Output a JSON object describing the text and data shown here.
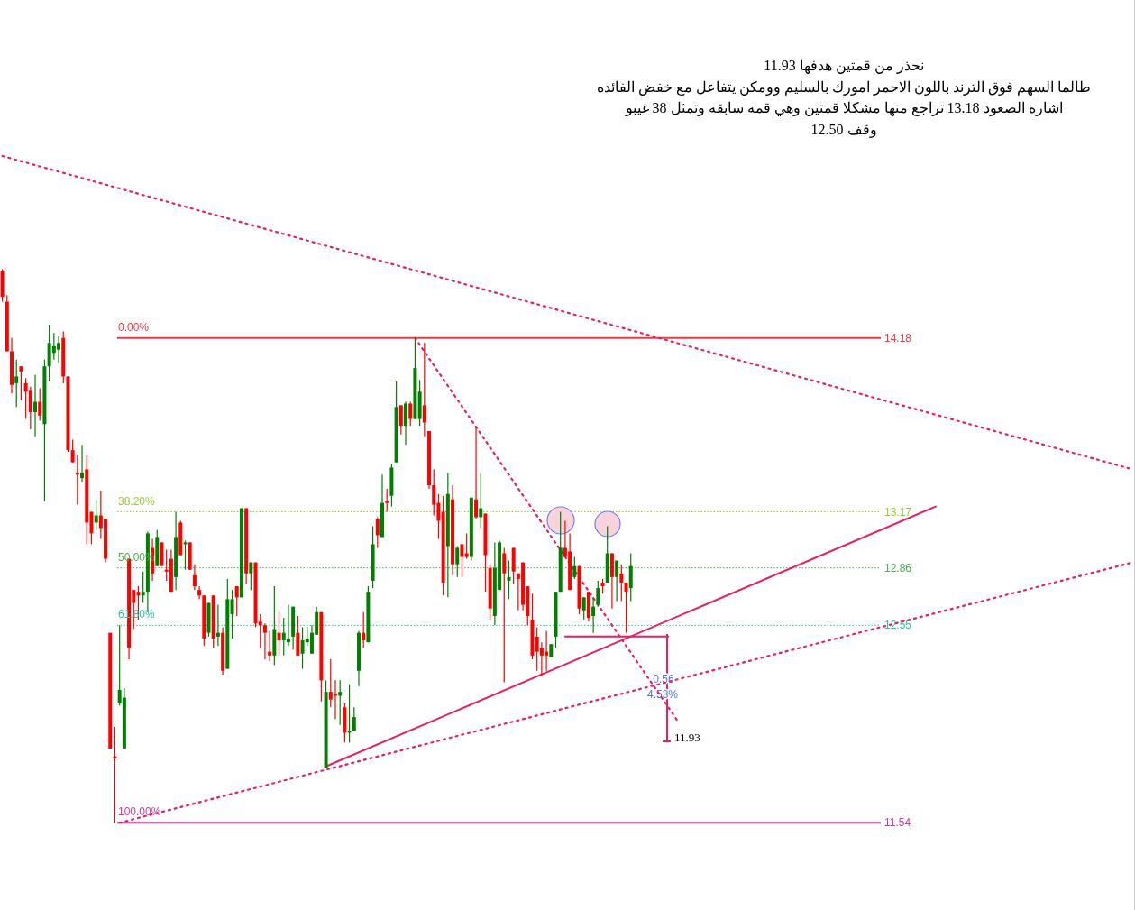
{
  "chart_data": {
    "type": "candlestick",
    "log": true,
    "ylim": [
      11.12,
      16.37
    ],
    "yticks": [
      14.18,
      13.17,
      12.86,
      12.55,
      11.54
    ],
    "tick_labels": "y",
    "categories": [
      null,
      null,
      null,
      null,
      null,
      null,
      null,
      null,
      null,
      null,
      null,
      null,
      null,
      null,
      null,
      null,
      null,
      null,
      null,
      null,
      null,
      null,
      null,
      null,
      null,
      null,
      null,
      null,
      null,
      null,
      null,
      null,
      null,
      null,
      null,
      null,
      null,
      null,
      null,
      null,
      null,
      null,
      null,
      null,
      null,
      null,
      null,
      null,
      null,
      null,
      null,
      null,
      null,
      null,
      null,
      null,
      null,
      null,
      null,
      null,
      null,
      null,
      null,
      null,
      null,
      null,
      null,
      null,
      null,
      null,
      null,
      null,
      null,
      null,
      null,
      null,
      null,
      null,
      null,
      null,
      null,
      null,
      null,
      null,
      null,
      null,
      null,
      null,
      null,
      null,
      null,
      null,
      null,
      null,
      null,
      null,
      null,
      null,
      null,
      null,
      null,
      null,
      null,
      null,
      null,
      null,
      null,
      null,
      null,
      null,
      null,
      null,
      null,
      null,
      null,
      null,
      null,
      null,
      null,
      null,
      null,
      null,
      null,
      null,
      null,
      null,
      null,
      null,
      null,
      null,
      null,
      null,
      null,
      null,
      null,
      null,
      null,
      null,
      null,
      null,
      null,
      null,
      null,
      null,
      null,
      null,
      null,
      null,
      null,
      null,
      null,
      null,
      null,
      null,
      null,
      null,
      null,
      null,
      null,
      null,
      null,
      null,
      null,
      null,
      null,
      null,
      null,
      null,
      null,
      null,
      null,
      null,
      null,
      null,
      null,
      null,
      null,
      null,
      null,
      null,
      null,
      null,
      null,
      null,
      null,
      null,
      null,
      null,
      null,
      null,
      null,
      null,
      null,
      null,
      null,
      null,
      null,
      null,
      null,
      null,
      null,
      null,
      null,
      null,
      null,
      null,
      null,
      null,
      null,
      null,
      null,
      null,
      null,
      null,
      null,
      null,
      null,
      null,
      null,
      null,
      null,
      null,
      null,
      null,
      null,
      null,
      null,
      null,
      null,
      null,
      null,
      null,
      null,
      null,
      null,
      null,
      null,
      null,
      null,
      null,
      null,
      null
    ],
    "ohlc": [
      [
        14.59,
        14.6,
        14.4,
        14.43
      ],
      [
        14.4,
        14.44,
        14.1,
        14.1
      ],
      [
        14.1,
        14.18,
        13.85,
        13.9
      ],
      [
        13.91,
        14.05,
        13.77,
        13.95
      ],
      [
        14.01,
        14.01,
        13.81,
        13.98
      ],
      [
        13.91,
        13.94,
        13.7,
        13.86
      ],
      [
        13.87,
        13.89,
        13.64,
        13.74
      ],
      [
        13.74,
        13.96,
        13.6,
        13.8
      ],
      [
        13.8,
        13.88,
        13.69,
        13.72
      ],
      [
        13.67,
        14.05,
        13.23,
        14.01
      ],
      [
        14.01,
        14.26,
        13.92,
        14.15
      ],
      [
        14.09,
        14.21,
        14.05,
        14.13
      ],
      [
        14.11,
        14.19,
        14.03,
        14.15
      ],
      [
        14.18,
        14.22,
        13.91,
        13.95
      ],
      [
        13.95,
        13.95,
        13.51,
        13.52
      ],
      [
        13.52,
        13.58,
        13.45,
        13.45
      ],
      [
        13.39,
        13.49,
        13.21,
        13.38
      ],
      [
        13.36,
        13.55,
        13.34,
        13.39
      ],
      [
        13.41,
        13.49,
        12.99,
        13.11
      ],
      [
        13.17,
        13.17,
        12.99,
        13.05
      ],
      [
        13.11,
        13.24,
        13.07,
        13.15
      ],
      [
        13.15,
        13.29,
        13.02,
        13.08
      ],
      [
        13.13,
        13.13,
        12.89,
        12.91
      ],
      [
        12.51,
        12.51,
        11.91,
        11.91
      ],
      [
        11.87,
        12.02,
        11.54,
        11.86
      ],
      [
        12.14,
        12.55,
        12.13,
        12.21
      ],
      [
        11.91,
        12.22,
        11.91,
        12.17
      ],
      [
        12.91,
        12.91,
        12.37,
        12.43
      ],
      [
        12.74,
        12.74,
        12.53,
        12.67
      ],
      [
        12.73,
        12.76,
        12.58,
        12.71
      ],
      [
        12.71,
        12.84,
        12.67,
        12.73
      ],
      [
        12.73,
        13.06,
        12.62,
        13.05
      ],
      [
        12.97,
        13.02,
        12.79,
        12.83
      ],
      [
        12.87,
        13.07,
        12.87,
        13.03
      ],
      [
        13.0,
        13.0,
        12.87,
        12.87
      ],
      [
        12.85,
        12.96,
        12.79,
        12.84
      ],
      [
        12.91,
        12.96,
        12.73,
        12.73
      ],
      [
        12.81,
        13.17,
        12.74,
        13.03
      ],
      [
        13.11,
        13.12,
        12.93,
        12.93
      ],
      [
        12.99,
        13.01,
        12.85,
        13.0
      ],
      [
        13.0,
        13.0,
        12.85,
        12.85
      ],
      [
        12.82,
        12.88,
        12.74,
        12.76
      ],
      [
        12.74,
        12.76,
        12.69,
        12.71
      ],
      [
        12.71,
        12.71,
        12.44,
        12.48
      ],
      [
        12.51,
        12.67,
        12.49,
        12.67
      ],
      [
        12.71,
        12.71,
        12.43,
        12.48
      ],
      [
        12.49,
        12.66,
        12.44,
        12.51
      ],
      [
        12.51,
        12.54,
        12.29,
        12.31
      ],
      [
        12.32,
        12.8,
        12.32,
        12.69
      ],
      [
        12.61,
        12.74,
        12.48,
        12.69
      ],
      [
        12.76,
        12.76,
        12.6,
        12.7
      ],
      [
        12.7,
        13.19,
        12.7,
        13.19
      ],
      [
        13.19,
        13.19,
        12.77,
        12.83
      ],
      [
        12.83,
        12.89,
        12.74,
        12.89
      ],
      [
        12.89,
        12.89,
        12.54,
        12.56
      ],
      [
        12.57,
        12.61,
        12.43,
        12.55
      ],
      [
        12.55,
        12.56,
        12.37,
        12.51
      ],
      [
        12.41,
        12.52,
        12.36,
        12.39
      ],
      [
        12.39,
        12.76,
        12.34,
        12.53
      ],
      [
        12.51,
        12.62,
        12.39,
        12.47
      ],
      [
        12.47,
        12.59,
        12.39,
        12.51
      ],
      [
        12.46,
        12.66,
        12.44,
        12.48
      ],
      [
        12.49,
        12.65,
        12.42,
        12.65
      ],
      [
        12.51,
        12.6,
        12.39,
        12.39
      ],
      [
        12.4,
        12.54,
        12.32,
        12.47
      ],
      [
        12.46,
        12.54,
        12.44,
        12.48
      ],
      [
        12.4,
        12.55,
        12.4,
        12.51
      ],
      [
        12.5,
        12.65,
        12.5,
        12.62
      ],
      [
        12.62,
        12.62,
        12.15,
        12.26
      ],
      [
        11.81,
        12.26,
        11.81,
        12.2
      ],
      [
        12.2,
        12.37,
        12.12,
        12.16
      ],
      [
        12.19,
        12.26,
        12.06,
        12.18
      ],
      [
        12.18,
        12.26,
        12.03,
        12.2
      ],
      [
        12.12,
        12.14,
        11.94,
        11.99
      ],
      [
        11.99,
        12.24,
        11.94,
        12.0
      ],
      [
        12.0,
        12.12,
        12.0,
        12.07
      ],
      [
        12.31,
        12.52,
        12.23,
        12.51
      ],
      [
        12.51,
        12.62,
        12.43,
        12.47
      ],
      [
        12.46,
        12.76,
        12.46,
        12.73
      ],
      [
        12.79,
        13.09,
        12.75,
        12.99
      ],
      [
        13.13,
        13.14,
        12.97,
        13.04
      ],
      [
        13.03,
        13.38,
        13.03,
        13.22
      ],
      [
        13.23,
        13.3,
        13.17,
        13.22
      ],
      [
        13.26,
        13.44,
        13.2,
        13.42
      ],
      [
        13.45,
        13.92,
        13.45,
        13.77
      ],
      [
        13.78,
        13.78,
        13.61,
        13.66
      ],
      [
        13.66,
        13.8,
        13.55,
        13.79
      ],
      [
        13.79,
        13.8,
        13.66,
        13.7
      ],
      [
        13.7,
        14.18,
        13.7,
        14.0
      ],
      [
        13.7,
        13.93,
        13.66,
        13.86
      ],
      [
        13.78,
        14.15,
        13.6,
        13.68
      ],
      [
        13.63,
        13.63,
        13.3,
        13.32
      ],
      [
        13.32,
        13.41,
        13.15,
        13.21
      ],
      [
        13.22,
        13.27,
        13.02,
        13.12
      ],
      [
        13.17,
        13.26,
        12.71,
        12.78
      ],
      [
        12.98,
        13.39,
        12.7,
        13.27
      ],
      [
        13.24,
        13.32,
        12.82,
        12.88
      ],
      [
        12.88,
        12.98,
        12.81,
        12.97
      ],
      [
        12.99,
        12.99,
        12.81,
        12.92
      ],
      [
        12.94,
        13.05,
        12.91,
        12.92
      ],
      [
        12.92,
        13.25,
        12.9,
        13.25
      ],
      [
        13.24,
        13.65,
        13.13,
        13.14
      ],
      [
        13.14,
        13.39,
        13.08,
        13.19
      ],
      [
        13.16,
        13.16,
        12.73,
        12.93
      ],
      [
        12.86,
        12.88,
        12.58,
        12.64
      ],
      [
        12.6,
        13.0,
        12.55,
        12.86
      ],
      [
        12.74,
        13.01,
        12.74,
        13.0
      ],
      [
        12.94,
        12.97,
        12.25,
        12.83
      ],
      [
        12.79,
        12.9,
        12.69,
        12.81
      ],
      [
        12.97,
        12.97,
        12.77,
        12.84
      ],
      [
        12.83,
        12.83,
        12.63,
        12.8
      ],
      [
        12.89,
        12.89,
        12.63,
        12.66
      ],
      [
        12.76,
        12.76,
        12.55,
        12.6
      ],
      [
        12.58,
        12.72,
        12.37,
        12.39
      ],
      [
        12.49,
        12.54,
        12.31,
        12.41
      ],
      [
        12.43,
        12.46,
        12.28,
        12.39
      ],
      [
        12.41,
        12.52,
        12.31,
        12.39
      ],
      [
        12.38,
        12.45,
        12.38,
        12.45
      ],
      [
        12.49,
        12.73,
        12.43,
        12.73
      ],
      [
        12.73,
        13.17,
        12.73,
        12.97
      ],
      [
        12.97,
        13.12,
        12.92,
        12.92
      ],
      [
        12.95,
        13.05,
        12.74,
        12.74
      ],
      [
        12.81,
        12.92,
        12.8,
        12.87
      ],
      [
        12.87,
        12.87,
        12.61,
        12.64
      ],
      [
        12.63,
        12.7,
        12.58,
        12.7
      ],
      [
        12.73,
        12.73,
        12.57,
        12.59
      ],
      [
        12.6,
        12.7,
        12.51,
        12.65
      ],
      [
        12.66,
        12.79,
        12.65,
        12.75
      ],
      [
        12.78,
        12.8,
        12.72,
        12.76
      ],
      [
        12.78,
        13.09,
        12.78,
        12.94
      ],
      [
        12.94,
        12.94,
        12.64,
        12.81
      ],
      [
        12.81,
        12.9,
        12.68,
        12.9
      ],
      [
        12.83,
        12.88,
        12.68,
        12.78
      ],
      [
        12.78,
        12.78,
        12.51,
        12.73
      ],
      [
        12.75,
        12.94,
        12.68,
        12.87
      ],
      null,
      null,
      null,
      null,
      null,
      null,
      null,
      null,
      null,
      null,
      null,
      null,
      null,
      null,
      null,
      null,
      null,
      null,
      null,
      null,
      null,
      null,
      null,
      null,
      null,
      null,
      null,
      null,
      null,
      null,
      null,
      null,
      null,
      null,
      null,
      null,
      null,
      null,
      null,
      null,
      null,
      null,
      null,
      null,
      null,
      null,
      null,
      null,
      null,
      null,
      null,
      null,
      null,
      null,
      null,
      null,
      null,
      null,
      null,
      null,
      null,
      null,
      null,
      null,
      null,
      null,
      null,
      null,
      null,
      null,
      null,
      null,
      null,
      null,
      null,
      null,
      null,
      null,
      null,
      null,
      null,
      null,
      null,
      null,
      null,
      null,
      null,
      null,
      null,
      null,
      null,
      null,
      null,
      null,
      null,
      null,
      null,
      null,
      null,
      null,
      null,
      null,
      null,
      null,
      null,
      null,
      null
    ],
    "series": [
      {
        "type": "line",
        "values": [
          15.32,
          null,
          null,
          null,
          null,
          null,
          null,
          null,
          null,
          null,
          null,
          null,
          null,
          null,
          null,
          null,
          null,
          null,
          null,
          null,
          null,
          null,
          null,
          null,
          null,
          null,
          null,
          null,
          null,
          null,
          null,
          null,
          null,
          null,
          null,
          null,
          null,
          null,
          null,
          null,
          null,
          null,
          null,
          null,
          null,
          null,
          null,
          null,
          null,
          null,
          null,
          null,
          null,
          null,
          null,
          null,
          null,
          null,
          null,
          null,
          null,
          null,
          null,
          null,
          null,
          null,
          null,
          null,
          null,
          null,
          null,
          null,
          null,
          null,
          null,
          null,
          null,
          null,
          null,
          null,
          null,
          null,
          null,
          null,
          null,
          null,
          null,
          null,
          null,
          null,
          null,
          null,
          null,
          null,
          null,
          null,
          null,
          null,
          null,
          null,
          null,
          null,
          null,
          null,
          null,
          null,
          null,
          null,
          null,
          null,
          null,
          null,
          null,
          null,
          null,
          null,
          null,
          null,
          null,
          null,
          null,
          null,
          null,
          null,
          null,
          null,
          null,
          null,
          null,
          null,
          null,
          null,
          null,
          null,
          null,
          null,
          null,
          null,
          null,
          null,
          null,
          null,
          null,
          null,
          null,
          null,
          null,
          null,
          null,
          null,
          null,
          null,
          null,
          null,
          null,
          null,
          null,
          null,
          null,
          null,
          null,
          null,
          null,
          null,
          null,
          null,
          null,
          null,
          null,
          null,
          null,
          null,
          null,
          null,
          null,
          null,
          null,
          null,
          null,
          null,
          null,
          null,
          null,
          null,
          null,
          null,
          null,
          null,
          null,
          null,
          null,
          null,
          null,
          null,
          null,
          null,
          null,
          null,
          null,
          null,
          null,
          null,
          null,
          null,
          null,
          null,
          null,
          null,
          null,
          null,
          null,
          null,
          null,
          null,
          null,
          null,
          null,
          null,
          null,
          null,
          null,
          null,
          null,
          null,
          null,
          null,
          null,
          null,
          null,
          null,
          null,
          null,
          null,
          null,
          null,
          null,
          null,
          null,
          null,
          null,
          null,
          13.41
        ],
        "color": "#e91e63",
        "line_style": "dotted"
      },
      {
        "type": "line",
        "values": [
          null,
          null,
          null,
          null,
          null,
          null,
          null,
          null,
          null,
          null,
          null,
          null,
          null,
          null,
          null,
          null,
          null,
          null,
          null,
          null,
          null,
          null,
          null,
          null,
          null,
          null,
          null,
          null,
          null,
          null,
          null,
          null,
          null,
          null,
          null,
          null,
          null,
          null,
          null,
          null,
          null,
          null,
          null,
          null,
          null,
          null,
          null,
          null,
          null,
          null,
          null,
          null,
          null,
          null,
          null,
          null,
          null,
          null,
          null,
          null,
          null,
          null,
          null,
          null,
          null,
          null,
          null,
          null,
          null,
          null,
          null,
          null,
          null,
          null,
          null,
          null,
          null,
          null,
          null,
          null,
          null,
          null,
          null,
          null,
          null,
          null,
          null,
          null,
          14.18,
          null,
          null,
          null,
          null,
          null,
          null,
          null,
          null,
          null,
          null,
          null,
          null,
          null,
          null,
          null,
          null,
          null,
          null,
          null,
          null,
          null,
          null,
          null,
          null,
          null,
          null,
          null,
          null,
          null,
          null,
          null,
          null,
          null,
          null,
          null,
          null,
          null,
          null,
          null,
          null,
          null,
          null,
          null,
          null,
          null,
          null,
          null,
          null,
          null,
          null,
          null,
          null,
          null,
          null,
          null,
          12.05,
          null,
          null,
          null,
          null,
          null,
          null,
          null,
          null,
          null,
          null,
          null,
          null,
          null,
          null,
          null,
          null,
          null,
          null,
          null,
          null,
          null,
          null,
          null,
          null,
          null,
          null,
          null,
          null,
          null,
          null,
          null,
          null,
          null,
          null,
          null,
          null,
          null,
          null,
          null,
          null,
          null,
          null,
          null,
          null,
          null,
          null,
          null,
          null,
          null,
          null,
          null,
          null,
          null,
          null,
          null,
          null,
          null,
          null,
          null,
          null,
          null,
          null,
          null,
          null,
          null,
          null,
          null,
          null,
          null,
          null,
          null,
          null,
          null,
          null,
          null,
          null,
          null,
          null,
          null,
          null,
          null,
          null,
          null,
          null,
          null,
          null,
          null,
          null,
          null,
          null,
          null,
          null,
          null,
          null,
          null,
          null,
          null
        ],
        "color": "#e91e63",
        "line_style": "dotted"
      },
      {
        "type": "line",
        "values": [
          null,
          null,
          null,
          null,
          null,
          null,
          null,
          null,
          null,
          null,
          null,
          null,
          null,
          null,
          null,
          null,
          null,
          null,
          null,
          null,
          null,
          null,
          null,
          null,
          null,
          null,
          null,
          null,
          null,
          null,
          null,
          null,
          null,
          null,
          null,
          null,
          null,
          null,
          null,
          null,
          null,
          null,
          null,
          null,
          null,
          null,
          null,
          null,
          null,
          null,
          null,
          null,
          null,
          null,
          null,
          null,
          null,
          null,
          null,
          null,
          null,
          null,
          null,
          null,
          null,
          null,
          null,
          null,
          null,
          11.82,
          null,
          null,
          null,
          null,
          null,
          null,
          null,
          null,
          null,
          null,
          null,
          null,
          null,
          null,
          null,
          null,
          null,
          null,
          null,
          null,
          null,
          null,
          null,
          null,
          null,
          null,
          null,
          null,
          null,
          null,
          null,
          null,
          null,
          null,
          null,
          null,
          null,
          null,
          null,
          null,
          null,
          null,
          null,
          null,
          null,
          null,
          null,
          null,
          null,
          null,
          null,
          null,
          null,
          null,
          null,
          null,
          null,
          null,
          null,
          null,
          null,
          null,
          null,
          null,
          null,
          null,
          null,
          null,
          null,
          null,
          null,
          null,
          null,
          null,
          null,
          null,
          null,
          null,
          null,
          null,
          null,
          null,
          null,
          null,
          null,
          null,
          null,
          null,
          null,
          null,
          null,
          null,
          null,
          null,
          null,
          null,
          null,
          null,
          null,
          null,
          null,
          null,
          null,
          null,
          null,
          null,
          null,
          null,
          null,
          null,
          null,
          null,
          null,
          null,
          null,
          null,
          null,
          null,
          null,
          null,
          null,
          null,
          null,
          null,
          null,
          null,
          null,
          null,
          null,
          13.2,
          null,
          null,
          null,
          null,
          null,
          null,
          null,
          null,
          null,
          null,
          null,
          null,
          null,
          null,
          null,
          null,
          null,
          null,
          null,
          null,
          null,
          null,
          null,
          null,
          null,
          null,
          null,
          null,
          null,
          null,
          null,
          null,
          null,
          null,
          null,
          null,
          null,
          null,
          null,
          null,
          null,
          null
        ],
        "color": "#e91e63",
        "line_style": "solid"
      },
      {
        "type": "line",
        "values": [
          null,
          null,
          null,
          null,
          null,
          null,
          null,
          null,
          null,
          null,
          null,
          null,
          null,
          null,
          null,
          null,
          null,
          null,
          null,
          null,
          null,
          null,
          null,
          null,
          null,
          11.54,
          null,
          null,
          null,
          null,
          null,
          null,
          null,
          null,
          null,
          null,
          null,
          null,
          null,
          null,
          null,
          null,
          null,
          null,
          null,
          null,
          null,
          null,
          null,
          null,
          null,
          null,
          null,
          null,
          null,
          null,
          null,
          null,
          null,
          null,
          null,
          null,
          null,
          null,
          null,
          null,
          null,
          null,
          null,
          null,
          null,
          null,
          null,
          null,
          null,
          null,
          null,
          null,
          null,
          null,
          null,
          null,
          null,
          null,
          null,
          null,
          null,
          null,
          null,
          null,
          null,
          null,
          null,
          null,
          null,
          null,
          null,
          null,
          null,
          null,
          null,
          null,
          null,
          null,
          null,
          null,
          null,
          null,
          null,
          null,
          null,
          null,
          null,
          null,
          null,
          null,
          null,
          null,
          null,
          null,
          null,
          null,
          null,
          null,
          null,
          null,
          null,
          null,
          null,
          null,
          null,
          null,
          null,
          null,
          null,
          null,
          null,
          null,
          null,
          null,
          null,
          null,
          null,
          null,
          null,
          null,
          null,
          null,
          null,
          null,
          null,
          null,
          null,
          null,
          null,
          null,
          null,
          null,
          null,
          null,
          null,
          null,
          null,
          null,
          null,
          null,
          null,
          null,
          null,
          null,
          null,
          null,
          null,
          null,
          null,
          null,
          null,
          null,
          null,
          null,
          null,
          null,
          null,
          null,
          null,
          null,
          null,
          null,
          null,
          null,
          null,
          null,
          null,
          null,
          null,
          null,
          null,
          null,
          null,
          null,
          null,
          null,
          null,
          null,
          null,
          null,
          null,
          null,
          null,
          null,
          null,
          null,
          null,
          null,
          null,
          null,
          null,
          null,
          null,
          null,
          null,
          null,
          null,
          null,
          null,
          null,
          null,
          null,
          null,
          null,
          null,
          null,
          null,
          null,
          null,
          null,
          null,
          null,
          null,
          null,
          null,
          12.89
        ],
        "color": "#e91e63",
        "line_style": "dotted"
      },
      {
        "type": "line",
        "values": [
          null,
          null,
          null,
          null,
          null,
          null,
          null,
          null,
          null,
          null,
          null,
          null,
          null,
          null,
          null,
          null,
          null,
          null,
          null,
          null,
          null,
          null,
          null,
          null,
          null,
          null,
          null,
          null,
          null,
          null,
          null,
          null,
          null,
          null,
          null,
          null,
          null,
          null,
          null,
          null,
          null,
          null,
          null,
          null,
          null,
          null,
          null,
          null,
          null,
          null,
          null,
          null,
          null,
          null,
          null,
          null,
          null,
          null,
          null,
          null,
          null,
          null,
          null,
          null,
          null,
          null,
          null,
          null,
          null,
          null,
          null,
          null,
          null,
          null,
          null,
          null,
          null,
          null,
          null,
          null,
          null,
          null,
          null,
          null,
          null,
          null,
          null,
          null,
          null,
          null,
          null,
          null,
          null,
          null,
          null,
          null,
          null,
          null,
          null,
          null,
          null,
          null,
          null,
          null,
          null,
          null,
          null,
          null,
          null,
          null,
          null,
          null,
          null,
          null,
          null,
          null,
          null,
          null,
          null,
          null,
          12.49,
          null,
          null,
          null,
          null,
          null,
          null,
          null,
          null,
          null,
          null,
          null,
          null,
          null,
          null,
          null,
          null,
          null,
          null,
          null,
          null,
          null,
          12.49,
          null,
          null,
          null,
          null,
          null,
          null,
          null,
          null,
          null,
          null,
          null,
          null,
          null,
          null,
          null,
          null,
          null,
          null,
          null,
          null,
          null,
          null,
          null,
          null,
          null,
          null,
          null,
          null,
          null,
          null,
          null,
          null,
          null,
          null,
          null,
          null,
          null,
          null,
          null,
          null,
          null,
          null,
          null,
          null,
          null,
          null,
          null,
          null,
          null,
          null,
          null,
          null,
          null,
          null,
          null,
          null,
          null,
          null,
          null,
          null,
          null,
          null,
          null,
          null,
          null,
          null,
          null,
          null,
          null,
          null,
          null,
          null,
          null,
          null,
          null,
          null,
          null,
          null,
          null,
          null,
          null,
          null,
          null,
          null,
          null,
          null,
          null,
          null,
          null,
          null,
          null,
          null,
          null,
          null,
          null,
          null,
          null,
          null,
          null
        ],
        "color": "#e91e63",
        "line_style": "solid"
      }
    ],
    "ref_lines": [
      {
        "axis": "y",
        "value": 14.18,
        "color": "#f23645",
        "line_style": "solid"
      },
      {
        "axis": "y",
        "value": 13.17,
        "color": "#9acd32",
        "line_style": "dotted"
      },
      {
        "axis": "y",
        "value": 12.86,
        "color": "#4caf50",
        "line_style": "dotted"
      },
      {
        "axis": "y",
        "value": 12.55,
        "color": "#26c6a6",
        "line_style": "dotted"
      },
      {
        "axis": "y",
        "value": 11.54,
        "color": "#d6359a",
        "line_style": "solid"
      }
    ],
    "annotations": [
      "نحذر من قمتين هدفها 11.93",
      "طالما السهم فوق الترند باللون الاحمر امورك بالسليم وومكن يتفاعل مع خفض الفائده",
      "اشاره الصعود 13.18 تراجع منها مشكلا قمتين وهي قمه سابقه وتمثل 38 غيبو",
      "وقف 12.50",
      {
        "text": "0.00%",
        "y": 14.18
      },
      {
        "text": "38.20%",
        "y": 13.17
      },
      {
        "text": "50.00%",
        "y": 12.86
      },
      {
        "text": "61.80%",
        "y": 12.55
      },
      {
        "text": "100.00%",
        "y": 11.54
      },
      "0.56",
      "4.53%",
      "11.93"
    ]
  }
}
